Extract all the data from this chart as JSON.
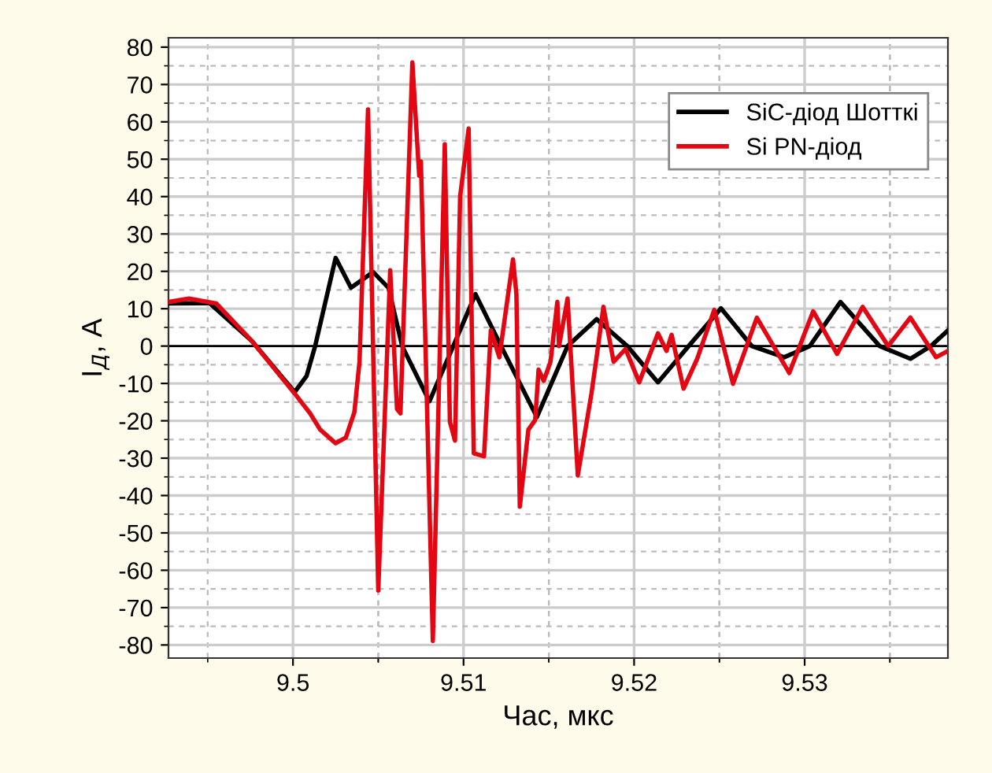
{
  "chart_data": {
    "type": "line",
    "xlabel": "Час, мкс",
    "ylabel": "I$_{Д}$, А",
    "xlim": [
      9.4927,
      9.5384
    ],
    "xticks": [
      9.5,
      9.51,
      9.52,
      9.53
    ],
    "ylim": [
      -83.5,
      82.5
    ],
    "yticks": [
      -80,
      -70,
      -60,
      -50,
      -40,
      -30,
      -20,
      -10,
      0,
      10,
      20,
      30,
      40,
      50,
      60,
      70,
      80
    ],
    "grid": true,
    "legend": "top right",
    "marker": "none",
    "line_style": "solid",
    "ref_lines": [
      {
        "axis": "y",
        "value": 0,
        "color": "#000000"
      }
    ],
    "series": [
      {
        "name": "SiC-діод Шотткі",
        "color": "#000000",
        "x": [
          9.4927,
          9.4951,
          9.4976,
          9.5001,
          9.5008,
          9.5013,
          9.5025,
          9.5034,
          9.5047,
          9.5056,
          9.5064,
          9.508,
          9.5094,
          9.5107,
          9.5122,
          9.5143,
          9.5161,
          9.5178,
          9.5196,
          9.5214,
          9.5232,
          9.5251,
          9.5269,
          9.5288,
          9.5303,
          9.5321,
          9.5344,
          9.5362,
          9.5374,
          9.5384
        ],
        "values": [
          11.4,
          11.5,
          1.3,
          -12.3,
          -8,
          0,
          23.6,
          15.6,
          19.8,
          15.6,
          0,
          -14.8,
          0,
          13.9,
          0,
          -19,
          0,
          7.2,
          0,
          -9.7,
          0,
          10.1,
          0,
          -3,
          0,
          11.8,
          0,
          -3.4,
          0,
          4.2
        ]
      },
      {
        "name": "Si PN-діод",
        "color": "#e30613",
        "x": [
          9.4927,
          9.4939,
          9.4955,
          9.4976,
          9.5001,
          9.501,
          9.5016,
          9.5025,
          9.5031,
          9.5036,
          9.5039,
          9.5044,
          9.505,
          9.5057,
          9.5061,
          9.5063,
          9.507,
          9.5074,
          9.5075,
          9.5082,
          9.5089,
          9.5092,
          9.5095,
          9.5098,
          9.5103,
          9.5106,
          9.5112,
          9.5116,
          9.5121,
          9.5129,
          9.5131,
          9.5133,
          9.5138,
          9.5142,
          9.5144,
          9.5147,
          9.5151,
          9.5155,
          9.5156,
          9.5161,
          9.5167,
          9.5175,
          9.5178,
          9.5182,
          9.5188,
          9.5195,
          9.5203,
          9.5214,
          9.5219,
          9.5222,
          9.5229,
          9.5237,
          9.5247,
          9.5258,
          9.5272,
          9.5291,
          9.5305,
          9.5319,
          9.5334,
          9.5349,
          9.5362,
          9.5377,
          9.5384
        ],
        "values": [
          11.8,
          12.7,
          11.4,
          1.3,
          -12.7,
          -18,
          -22.4,
          -26,
          -24.5,
          -17.7,
          -4.2,
          63.3,
          -65.4,
          20.3,
          -16.9,
          -18,
          75.9,
          45.6,
          49.4,
          -78.9,
          54,
          -20.3,
          -25.3,
          40.1,
          58.2,
          -28.7,
          -29.5,
          4.2,
          -3,
          23.2,
          13.9,
          -43,
          -22.4,
          -19.8,
          -6.3,
          -9.3,
          -4.2,
          11.8,
          0,
          12.7,
          -34.6,
          -12.7,
          -3,
          10.5,
          -4.2,
          -0.8,
          -9.7,
          3.4,
          -1.3,
          3,
          -11.4,
          -3.4,
          9.7,
          -10.1,
          7.6,
          -7.2,
          9.3,
          -2.1,
          10.5,
          0,
          7.6,
          -3,
          -1.3
        ]
      }
    ]
  }
}
